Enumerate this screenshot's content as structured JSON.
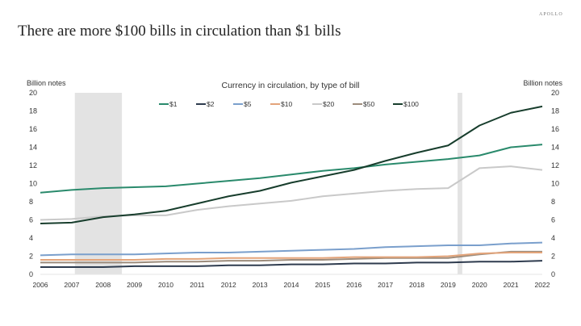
{
  "title": "There are more $100 bills in circulation than $1 bills",
  "logo": "APOLLO",
  "chart_data": {
    "type": "line",
    "title": "Currency in circulation, by type of bill",
    "ylabel_left": "Billion notes",
    "ylabel_right": "Billion notes",
    "xlabel": "",
    "x": [
      2006,
      2007,
      2008,
      2009,
      2010,
      2011,
      2012,
      2013,
      2014,
      2015,
      2016,
      2017,
      2018,
      2019,
      2020,
      2021,
      2022
    ],
    "xlim": [
      2006,
      2022
    ],
    "ylim": [
      0,
      20
    ],
    "yticks": [
      0,
      2,
      4,
      6,
      8,
      10,
      12,
      14,
      16,
      18,
      20
    ],
    "grid": false,
    "legend": "top-center",
    "recession_shading": [
      [
        2007.1,
        2008.6
      ],
      [
        2019.3,
        2019.45
      ]
    ],
    "series": [
      {
        "name": "$1",
        "color": "#2a8a6c",
        "values": [
          9.0,
          9.3,
          9.5,
          9.6,
          9.7,
          10.0,
          10.3,
          10.6,
          11.0,
          11.4,
          11.7,
          12.1,
          12.4,
          12.7,
          13.1,
          14.0,
          14.3
        ]
      },
      {
        "name": "$2",
        "color": "#2e3b4e",
        "values": [
          0.8,
          0.8,
          0.8,
          0.9,
          0.9,
          0.9,
          1.0,
          1.0,
          1.1,
          1.1,
          1.2,
          1.2,
          1.3,
          1.3,
          1.4,
          1.4,
          1.5
        ]
      },
      {
        "name": "$5",
        "color": "#7a9fcc",
        "values": [
          2.1,
          2.2,
          2.2,
          2.2,
          2.3,
          2.4,
          2.4,
          2.5,
          2.6,
          2.7,
          2.8,
          3.0,
          3.1,
          3.2,
          3.2,
          3.4,
          3.5
        ]
      },
      {
        "name": "$10",
        "color": "#e3a47a",
        "values": [
          1.6,
          1.6,
          1.6,
          1.6,
          1.7,
          1.7,
          1.8,
          1.8,
          1.8,
          1.8,
          1.9,
          1.9,
          1.9,
          2.0,
          2.3,
          2.4,
          2.4
        ]
      },
      {
        "name": "$20",
        "color": "#c9c9c9",
        "values": [
          6.0,
          6.1,
          6.4,
          6.5,
          6.5,
          7.1,
          7.5,
          7.8,
          8.1,
          8.6,
          8.9,
          9.2,
          9.4,
          9.5,
          11.7,
          11.9,
          11.5
        ]
      },
      {
        "name": "$50",
        "color": "#9c8c7c",
        "values": [
          1.3,
          1.3,
          1.3,
          1.3,
          1.4,
          1.4,
          1.5,
          1.5,
          1.6,
          1.6,
          1.7,
          1.8,
          1.8,
          1.8,
          2.2,
          2.5,
          2.5
        ]
      },
      {
        "name": "$100",
        "color": "#173d2c",
        "values": [
          5.6,
          5.7,
          6.3,
          6.6,
          7.0,
          7.8,
          8.6,
          9.2,
          10.1,
          10.8,
          11.5,
          12.5,
          13.4,
          14.2,
          16.4,
          17.8,
          18.5
        ]
      }
    ]
  }
}
